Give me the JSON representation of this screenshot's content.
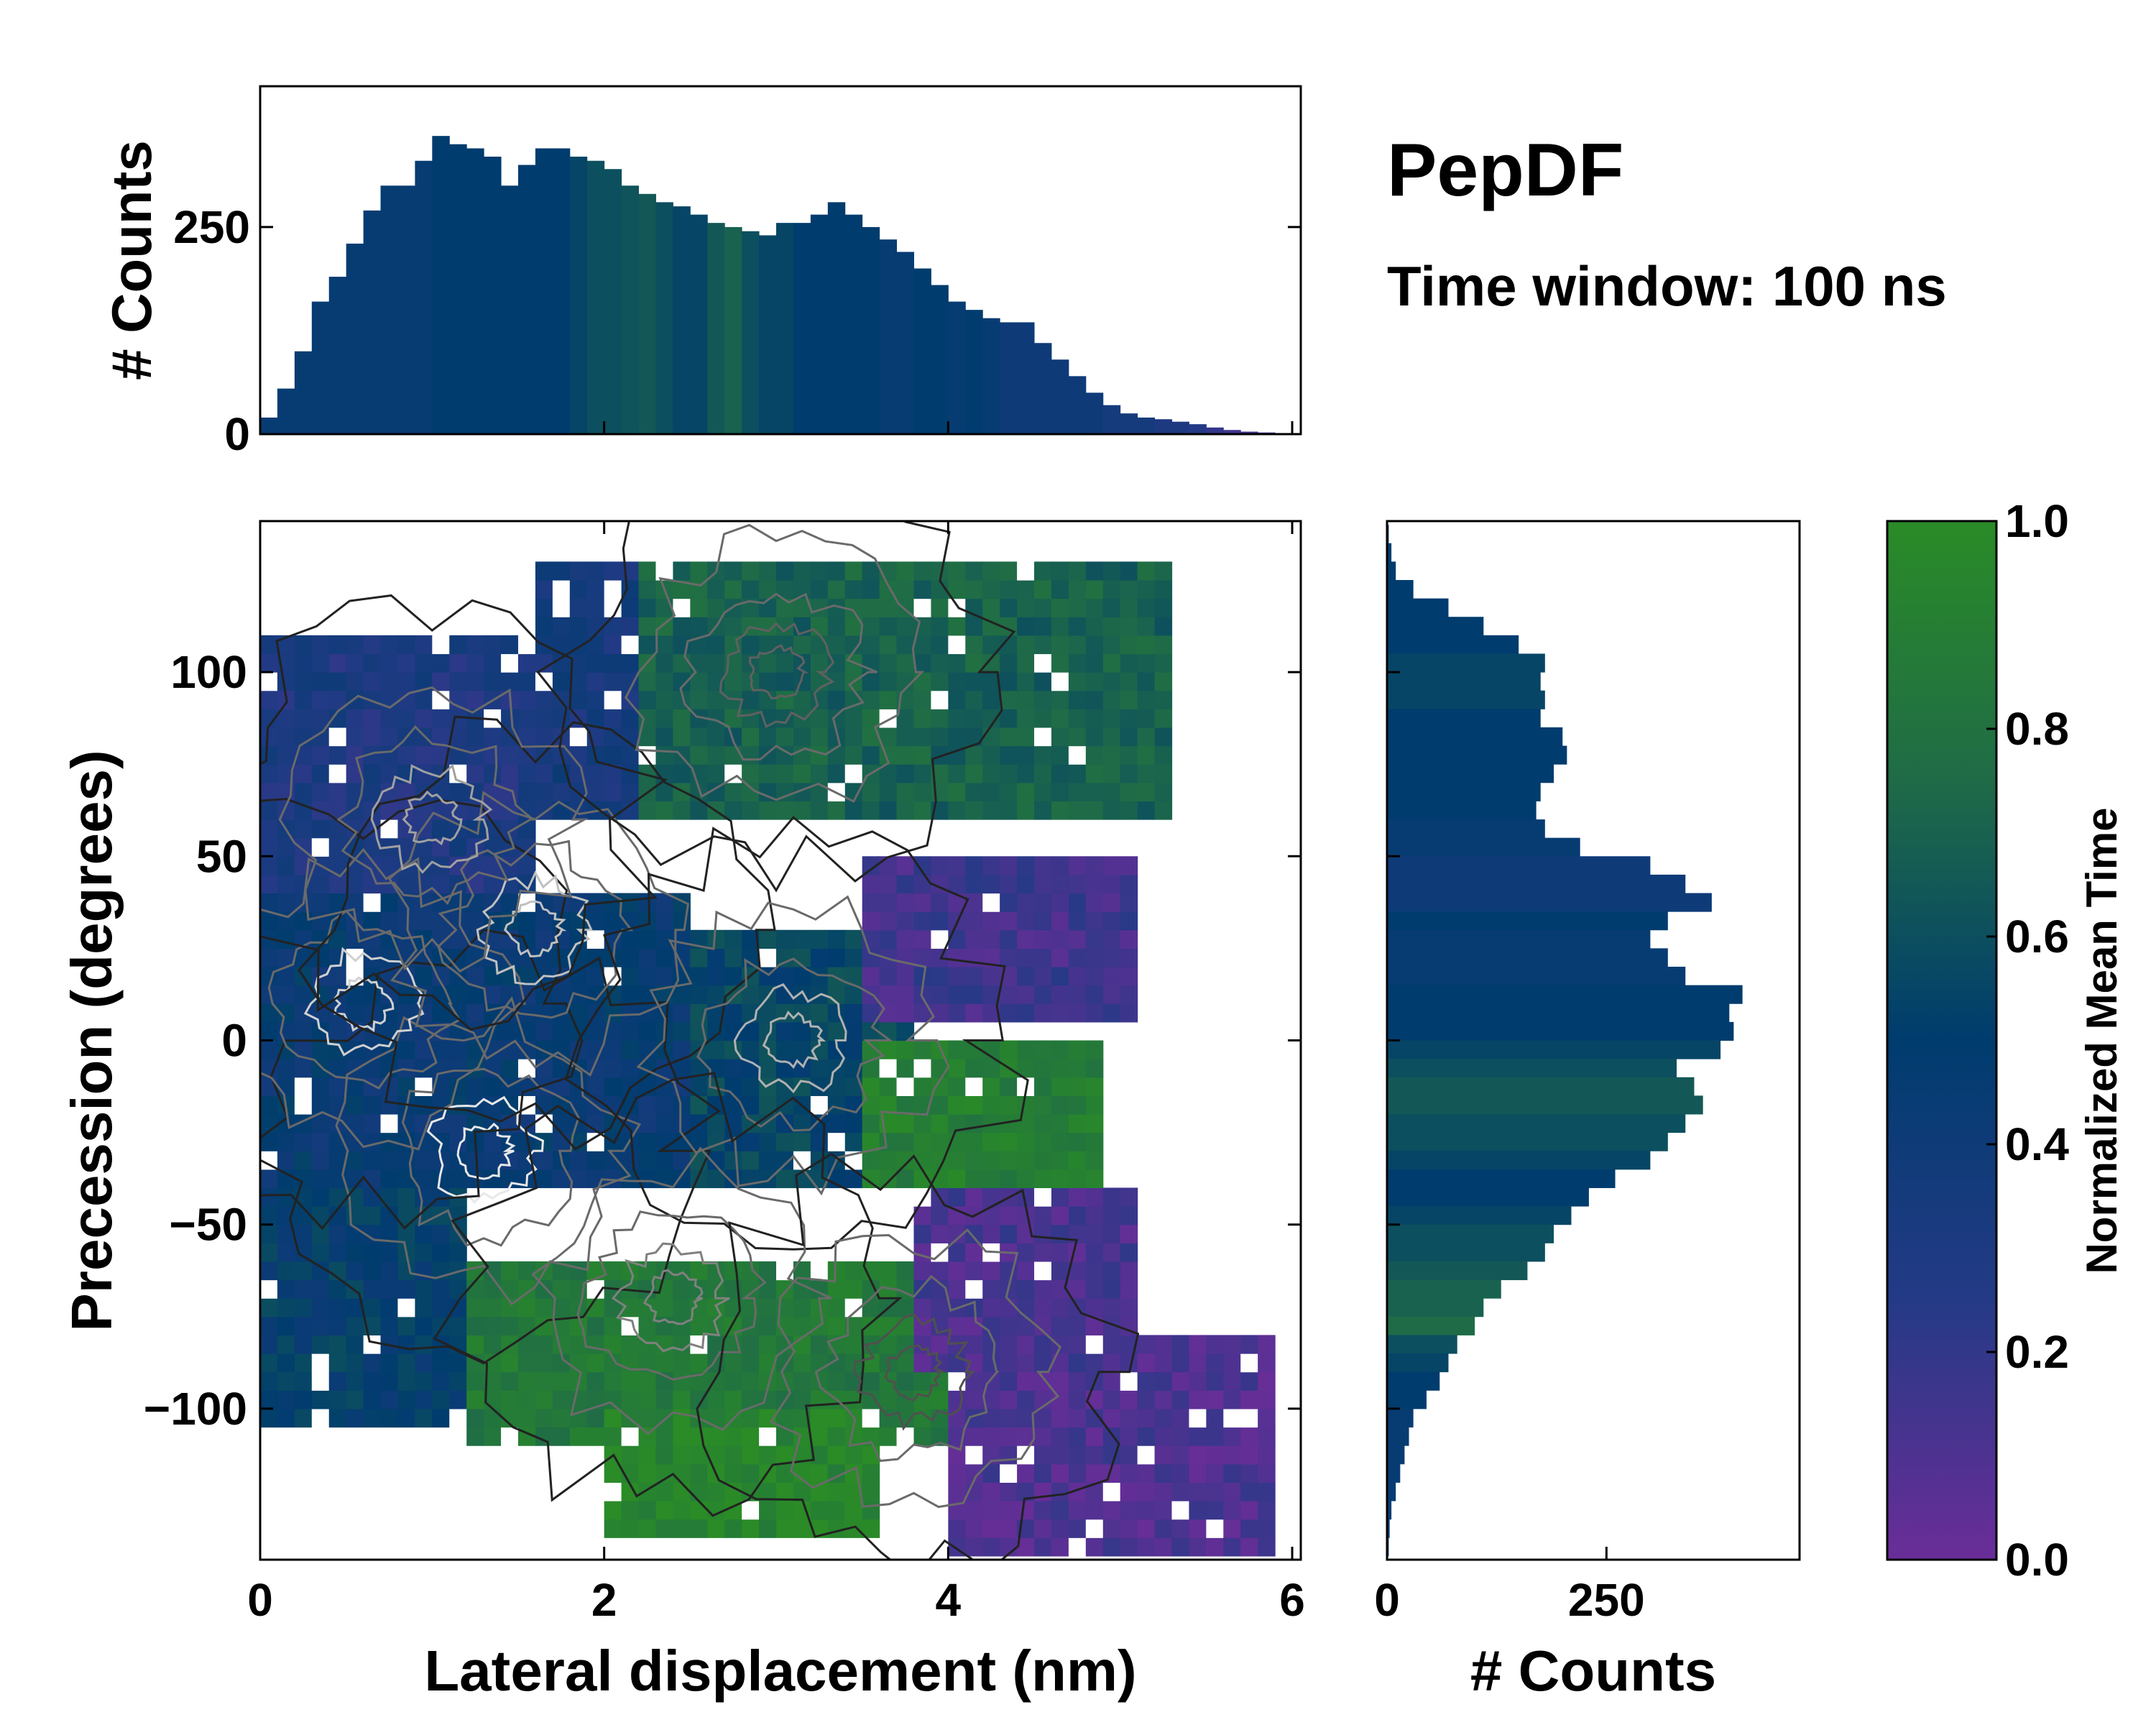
{
  "title": "PepDF",
  "subtitle": "Time window: 100 ns",
  "chart_data": [
    {
      "type": "heatmap",
      "name": "joint-density",
      "xlabel": "Lateral displacement (nm)",
      "ylabel": "Precession (degrees)",
      "xlim": [
        0,
        6.05
      ],
      "ylim": [
        -141,
        141
      ],
      "xticks": [
        0,
        2,
        4,
        6
      ],
      "xtick_labels": [
        "0",
        "2",
        "4",
        "6"
      ],
      "yticks": [
        -100,
        -50,
        0,
        50,
        100
      ],
      "ytick_labels": [
        "−100",
        "−50",
        "0",
        "50",
        "100"
      ],
      "color_meaning": "Normalized Mean Time",
      "regions": [
        {
          "x0": 0.0,
          "x1": 1.6,
          "y0": 30,
          "y1": 110,
          "value": 0.3
        },
        {
          "x0": 1.6,
          "x1": 3.2,
          "y0": 60,
          "y1": 130,
          "value": 0.35
        },
        {
          "x0": 2.2,
          "x1": 5.2,
          "y0": 60,
          "y1": 130,
          "value": 0.7
        },
        {
          "x0": 0.0,
          "x1": 2.5,
          "y0": -40,
          "y1": 40,
          "value": 0.45
        },
        {
          "x0": 2.5,
          "x1": 3.8,
          "y0": -40,
          "y1": 30,
          "value": 0.55
        },
        {
          "x0": 3.5,
          "x1": 5.0,
          "y0": 5,
          "y1": 50,
          "value": 0.15
        },
        {
          "x0": 3.5,
          "x1": 4.8,
          "y0": -40,
          "y1": 0,
          "value": 0.9
        },
        {
          "x0": 0.0,
          "x1": 1.2,
          "y0": -105,
          "y1": -40,
          "value": 0.5
        },
        {
          "x0": 1.2,
          "x1": 4.0,
          "y0": -110,
          "y1": -60,
          "value": 0.85
        },
        {
          "x0": 2.0,
          "x1": 3.6,
          "y0": -135,
          "y1": -100,
          "value": 0.95
        },
        {
          "x0": 4.0,
          "x1": 5.8,
          "y0": -140,
          "y1": -80,
          "value": 0.1
        },
        {
          "x0": 3.8,
          "x1": 5.0,
          "y0": -90,
          "y1": -40,
          "value": 0.12
        }
      ]
    },
    {
      "type": "bar",
      "name": "top-histogram",
      "xlabel": "",
      "ylabel": "# Counts",
      "xlim": [
        0,
        6.05
      ],
      "ylim": [
        0,
        420
      ],
      "yticks": [
        0,
        250
      ],
      "ytick_labels": [
        "0",
        "250"
      ],
      "x": [
        0.0,
        0.1,
        0.2,
        0.3,
        0.4,
        0.5,
        0.6,
        0.7,
        0.8,
        0.9,
        1.0,
        1.1,
        1.2,
        1.3,
        1.4,
        1.5,
        1.6,
        1.7,
        1.8,
        1.9,
        2.0,
        2.1,
        2.2,
        2.3,
        2.4,
        2.5,
        2.6,
        2.7,
        2.8,
        2.9,
        3.0,
        3.1,
        3.2,
        3.3,
        3.4,
        3.5,
        3.6,
        3.7,
        3.8,
        3.9,
        4.0,
        4.1,
        4.2,
        4.3,
        4.4,
        4.5,
        4.6,
        4.7,
        4.8,
        4.9,
        5.0,
        5.1,
        5.2,
        5.3,
        5.4,
        5.5,
        5.6,
        5.7,
        5.8
      ],
      "values": [
        20,
        55,
        100,
        160,
        190,
        230,
        270,
        300,
        300,
        330,
        360,
        350,
        345,
        335,
        300,
        325,
        345,
        345,
        335,
        330,
        320,
        300,
        290,
        280,
        275,
        265,
        255,
        250,
        245,
        240,
        255,
        255,
        265,
        280,
        265,
        250,
        235,
        220,
        200,
        180,
        160,
        150,
        140,
        135,
        135,
        110,
        90,
        70,
        50,
        35,
        25,
        20,
        18,
        15,
        12,
        8,
        5,
        3,
        2
      ],
      "colors": [
        0.45,
        0.45,
        0.45,
        0.45,
        0.45,
        0.45,
        0.45,
        0.45,
        0.45,
        0.45,
        0.5,
        0.5,
        0.5,
        0.5,
        0.5,
        0.5,
        0.5,
        0.5,
        0.55,
        0.6,
        0.6,
        0.62,
        0.65,
        0.6,
        0.55,
        0.55,
        0.65,
        0.7,
        0.6,
        0.55,
        0.55,
        0.5,
        0.5,
        0.5,
        0.5,
        0.5,
        0.45,
        0.45,
        0.5,
        0.5,
        0.45,
        0.5,
        0.45,
        0.4,
        0.4,
        0.4,
        0.4,
        0.4,
        0.4,
        0.35,
        0.35,
        0.35,
        0.3,
        0.3,
        0.25,
        0.2,
        0.15,
        0.15,
        0.15
      ]
    },
    {
      "type": "bar",
      "orientation": "horizontal",
      "name": "right-histogram",
      "xlabel": "# Counts",
      "ylabel": "",
      "xlim": [
        0,
        470
      ],
      "ylim": [
        -141,
        141
      ],
      "xticks": [
        0,
        250
      ],
      "xtick_labels": [
        "0",
        "250"
      ],
      "y": [
        135,
        130,
        125,
        120,
        115,
        110,
        105,
        100,
        95,
        90,
        85,
        80,
        75,
        70,
        65,
        60,
        55,
        50,
        45,
        40,
        35,
        30,
        25,
        20,
        15,
        10,
        5,
        0,
        -5,
        -10,
        -15,
        -20,
        -25,
        -30,
        -35,
        -40,
        -45,
        -50,
        -55,
        -60,
        -65,
        -70,
        -75,
        -80,
        -85,
        -90,
        -95,
        -100,
        -105,
        -110,
        -115,
        -120,
        -125,
        -130,
        -135,
        -140
      ],
      "values": [
        2,
        5,
        10,
        30,
        70,
        110,
        150,
        180,
        175,
        180,
        175,
        200,
        205,
        190,
        175,
        170,
        180,
        220,
        300,
        340,
        370,
        320,
        300,
        320,
        340,
        405,
        390,
        395,
        380,
        330,
        350,
        360,
        340,
        320,
        300,
        260,
        230,
        210,
        190,
        180,
        160,
        130,
        110,
        100,
        80,
        70,
        60,
        45,
        30,
        25,
        20,
        15,
        10,
        5,
        3,
        2
      ],
      "colors": [
        0.5,
        0.5,
        0.5,
        0.5,
        0.5,
        0.5,
        0.5,
        0.55,
        0.55,
        0.55,
        0.5,
        0.5,
        0.5,
        0.5,
        0.5,
        0.5,
        0.45,
        0.45,
        0.4,
        0.4,
        0.4,
        0.5,
        0.45,
        0.45,
        0.45,
        0.5,
        0.5,
        0.5,
        0.55,
        0.6,
        0.65,
        0.65,
        0.6,
        0.6,
        0.55,
        0.5,
        0.5,
        0.55,
        0.6,
        0.6,
        0.65,
        0.7,
        0.7,
        0.75,
        0.6,
        0.55,
        0.5,
        0.5,
        0.45,
        0.45,
        0.45,
        0.45,
        0.45,
        0.45,
        0.45,
        0.45
      ]
    },
    {
      "type": "colorbar",
      "name": "colorbar",
      "label": "Normalized Mean Time",
      "range": [
        0,
        1
      ],
      "ticks": [
        0,
        0.2,
        0.4,
        0.6,
        0.8,
        1.0
      ],
      "tick_labels": [
        "0.0",
        "0.2",
        "0.4",
        "0.6",
        "0.8",
        "1.0"
      ],
      "colormap": [
        "#6a2d98",
        "#243a86",
        "#003c6e",
        "#1f6b47",
        "#2a8b27"
      ]
    }
  ]
}
